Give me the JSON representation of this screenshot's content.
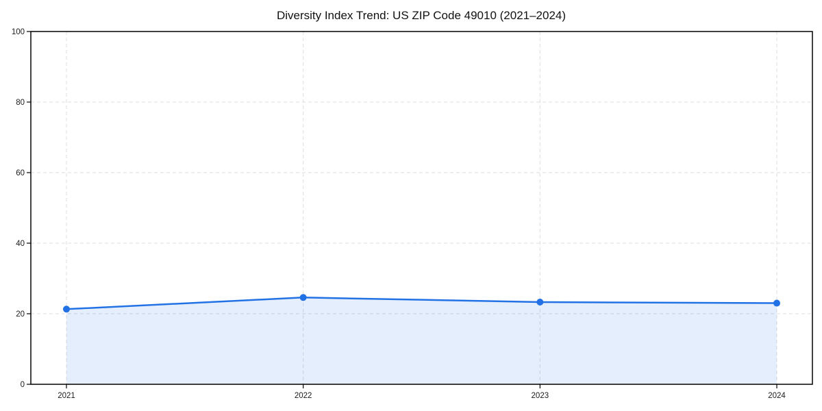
{
  "chart_data": {
    "type": "area",
    "title": "Diversity Index Trend: US ZIP Code 49010 (2021–2024)",
    "categories": [
      "2021",
      "2022",
      "2023",
      "2024"
    ],
    "values": [
      21.3,
      24.6,
      23.3,
      23.0
    ],
    "xlabel": "",
    "ylabel": "",
    "ylim": [
      0,
      100
    ],
    "yticks": [
      0,
      20,
      40,
      60,
      80,
      100
    ],
    "grid": true,
    "grid_style": "dashed",
    "legend_position": "none",
    "colors": {
      "line": "#2272e5",
      "marker": "#2272e5",
      "fill": "rgba(34,114,229,0.12)",
      "grid": "#e3e3e3",
      "axis": "#000000",
      "tick_text": "#1a1a1a",
      "background": "#ffffff"
    }
  }
}
